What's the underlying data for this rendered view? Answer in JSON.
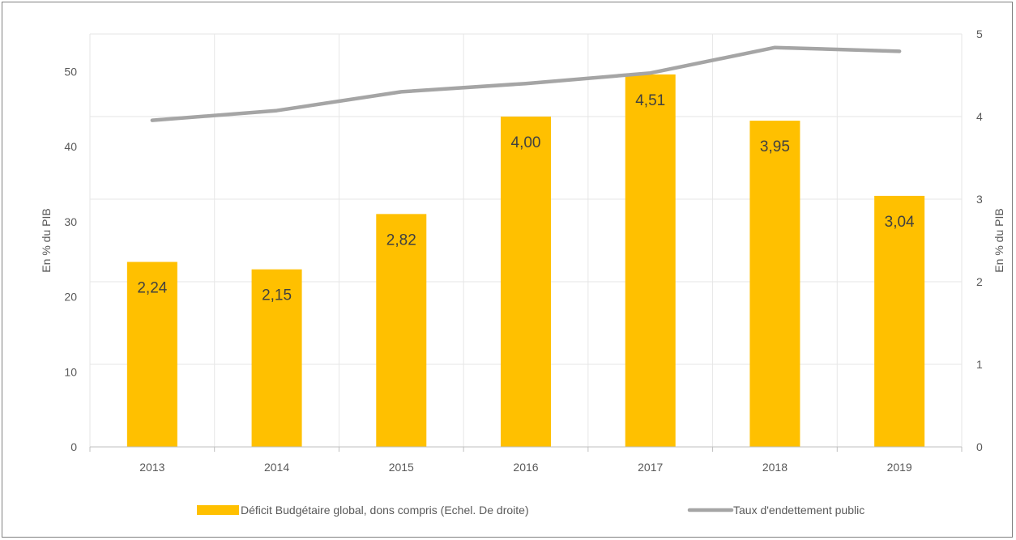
{
  "chart_data": {
    "type": "bar+line",
    "categories": [
      "2013",
      "2014",
      "2015",
      "2016",
      "2017",
      "2018",
      "2019"
    ],
    "series": [
      {
        "name": "Déficit Budgétaire global, dons compris (Echel. De droite)",
        "chart": "bar",
        "axis": "right",
        "color": "#FFC000",
        "values": [
          2.24,
          2.15,
          2.82,
          4.0,
          4.51,
          3.95,
          3.04
        ],
        "data_labels": [
          "2,24",
          "2,15",
          "2,82",
          "4,00",
          "4,51",
          "3,95",
          "3,04"
        ]
      },
      {
        "name": "Taux d'endettement public",
        "chart": "line",
        "axis": "left",
        "color": "#A5A5A5",
        "values": [
          43.5,
          44.8,
          47.3,
          48.4,
          49.8,
          53.2,
          52.7
        ]
      }
    ],
    "left_axis": {
      "label": "En % du PIB",
      "ylim": [
        0,
        55
      ],
      "ticks": [
        "0",
        "10",
        "20",
        "30",
        "40",
        "50"
      ]
    },
    "right_axis": {
      "label": "En % du PIB",
      "ylim": [
        0,
        5
      ],
      "ticks": [
        "0",
        "1",
        "2",
        "3",
        "4",
        "5"
      ]
    },
    "grid": true,
    "legend": "bottom"
  }
}
